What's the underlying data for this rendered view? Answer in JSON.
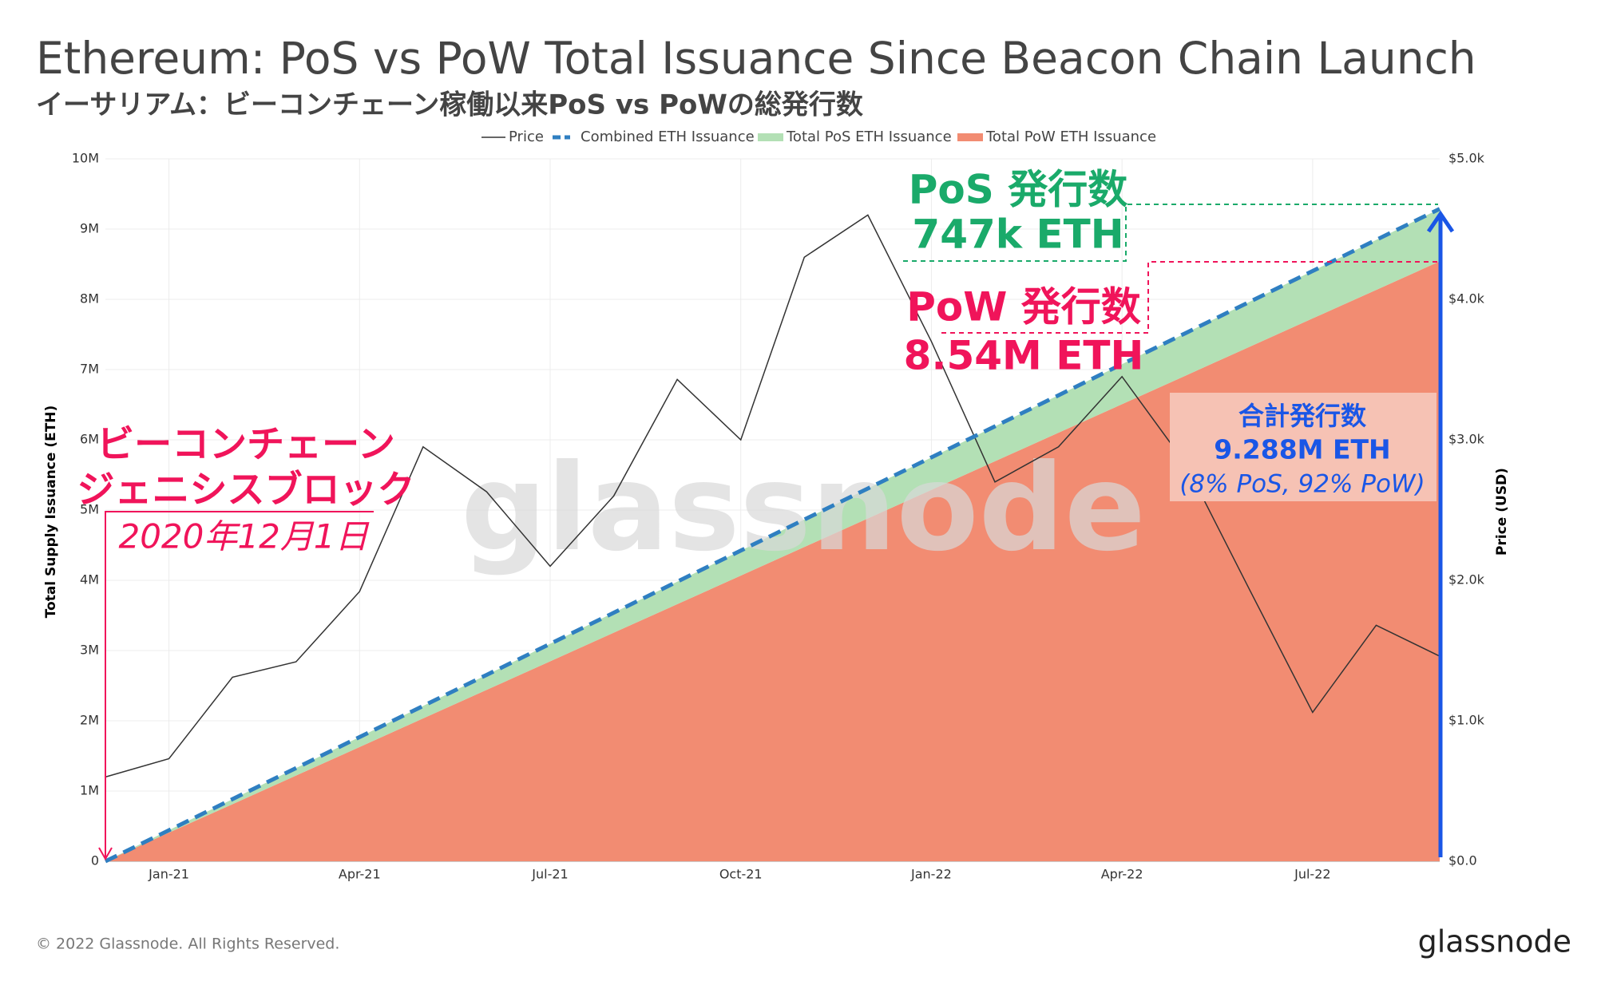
{
  "title": "Ethereum: PoS vs PoW Total Issuance Since Beacon Chain Launch",
  "subtitle": "イーサリアム：ビーコンチェーン稼働以来PoS vs PoWの総発行数",
  "chart_data": {
    "type": "line",
    "x": [
      "2020-12",
      "2021-01",
      "2021-02",
      "2021-03",
      "2021-04",
      "2021-05",
      "2021-06",
      "2021-07",
      "2021-08",
      "2021-09",
      "2021-10",
      "2021-11",
      "2021-12",
      "2022-01",
      "2022-02",
      "2022-03",
      "2022-04",
      "2022-05",
      "2022-06",
      "2022-07",
      "2022-08",
      "2022-09"
    ],
    "xlim": [
      "2020-12",
      "2022-09"
    ],
    "xticks": [
      {
        "value": "2021-01",
        "label": "Jan-21"
      },
      {
        "value": "2021-04",
        "label": "Apr-21"
      },
      {
        "value": "2021-07",
        "label": "Jul-21"
      },
      {
        "value": "2021-10",
        "label": "Oct-21"
      },
      {
        "value": "2022-01",
        "label": "Jan-22"
      },
      {
        "value": "2022-04",
        "label": "Apr-22"
      },
      {
        "value": "2022-07",
        "label": "Jul-22"
      }
    ],
    "ylim": [
      0,
      10000000
    ],
    "yticks": [
      {
        "value": 0,
        "label": "0"
      },
      {
        "value": 1000000,
        "label": "1M"
      },
      {
        "value": 2000000,
        "label": "2M"
      },
      {
        "value": 3000000,
        "label": "3M"
      },
      {
        "value": 4000000,
        "label": "4M"
      },
      {
        "value": 5000000,
        "label": "5M"
      },
      {
        "value": 6000000,
        "label": "6M"
      },
      {
        "value": 7000000,
        "label": "7M"
      },
      {
        "value": 8000000,
        "label": "8M"
      },
      {
        "value": 9000000,
        "label": "9M"
      },
      {
        "value": 10000000,
        "label": "10M"
      }
    ],
    "y2lim": [
      0,
      5000
    ],
    "y2ticks": [
      {
        "value": 0,
        "label": "$0.0"
      },
      {
        "value": 1000,
        "label": "$1.0k"
      },
      {
        "value": 2000,
        "label": "$2.0k"
      },
      {
        "value": 3000,
        "label": "$3.0k"
      },
      {
        "value": 4000,
        "label": "$4.0k"
      },
      {
        "value": 5000,
        "label": "$5.0k"
      }
    ],
    "ylabel": "Total Supply Issuance (ETH)",
    "y2label": "Price (USD)",
    "grid": true,
    "series": [
      {
        "name": "Price",
        "color": "#333333",
        "axis": "y2",
        "values": [
          600,
          730,
          1310,
          1420,
          1920,
          2950,
          2630,
          2100,
          2600,
          3430,
          3000,
          4300,
          4600,
          3700,
          2700,
          2950,
          3450,
          2830,
          1940,
          1060,
          1680,
          1460
        ]
      },
      {
        "name": "Combined ETH Issuance",
        "color": "#2f7fc1",
        "values": [
          0,
          442000,
          885000,
          1327000,
          1769000,
          2211000,
          2654000,
          3096000,
          3538000,
          3981000,
          4423000,
          4865000,
          5307000,
          5750000,
          6192000,
          6634000,
          7077000,
          7519000,
          7961000,
          8403000,
          8846000,
          9288000
        ]
      },
      {
        "name": "Total PoS ETH Issuance",
        "color": "#b3e0b5",
        "values": [
          0,
          36000,
          71000,
          107000,
          142000,
          178000,
          213000,
          249000,
          285000,
          320000,
          356000,
          391000,
          427000,
          462000,
          498000,
          534000,
          569000,
          605000,
          640000,
          676000,
          711000,
          747000
        ]
      },
      {
        "name": "Total PoW ETH Issuance",
        "color": "#f28c72",
        "values": [
          0,
          407000,
          813000,
          1220000,
          1627000,
          2034000,
          2440000,
          2847000,
          3254000,
          3660000,
          4067000,
          4474000,
          4881000,
          5287000,
          5694000,
          6101000,
          6507000,
          6914000,
          7321000,
          7728000,
          8134000,
          8541000
        ]
      }
    ],
    "annotations": {
      "pos_title": "PoS 発行数",
      "pos_value": "747k ETH",
      "pow_title": "PoW 発行数",
      "pow_value": "8.54M ETH",
      "total_title": "合計発行数",
      "total_value": "9.288M ETH",
      "total_split": "(8% PoS, 92% PoW)",
      "genesis_1": "ビーコンチェーン",
      "genesis_2": "ジェニシスブロック",
      "genesis_date": "2020年12月1日"
    }
  },
  "watermark": "glassnode",
  "footer": "© 2022 Glassnode. All Rights Reserved.",
  "logo": "glassnode"
}
